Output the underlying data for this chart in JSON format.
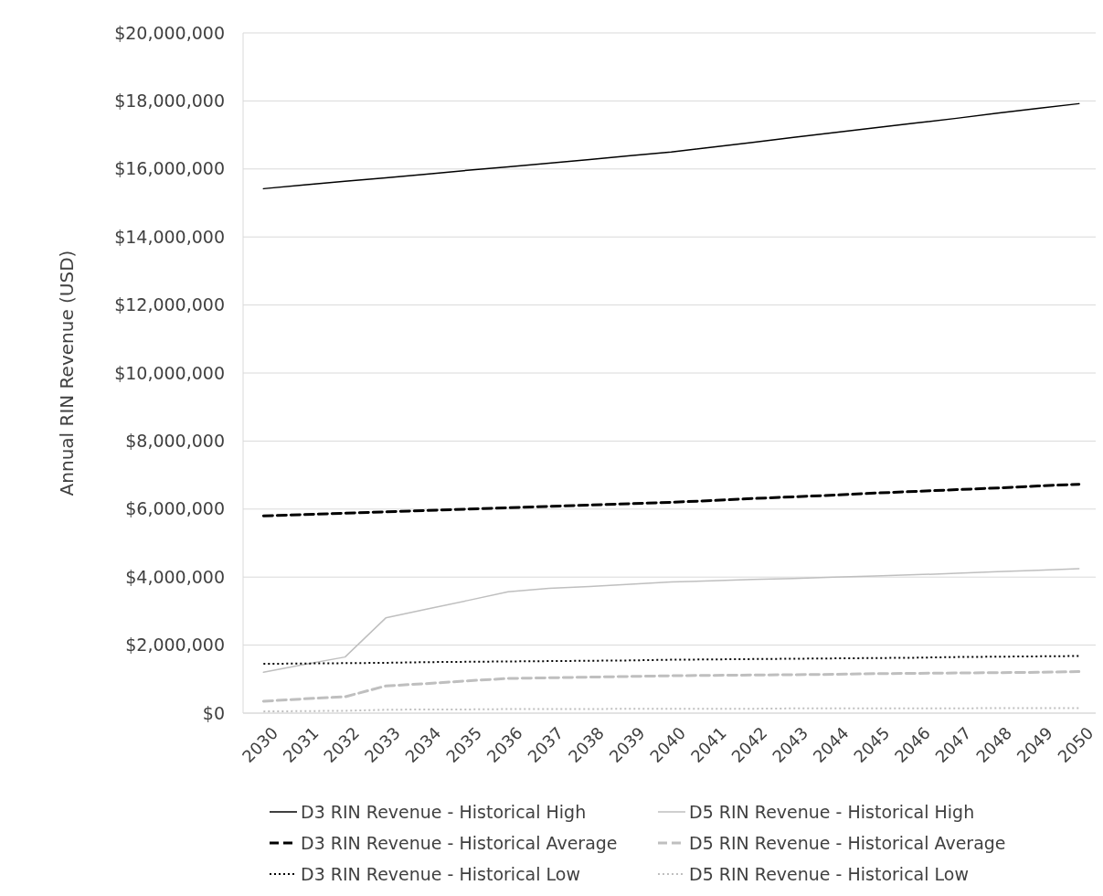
{
  "chart_data": {
    "type": "line",
    "ylabel": "Annual RIN Revenue (USD)",
    "categories": [
      "2030",
      "2031",
      "2032",
      "2033",
      "2034",
      "2035",
      "2036",
      "2037",
      "2038",
      "2039",
      "2040",
      "2041",
      "2042",
      "2043",
      "2044",
      "2045",
      "2046",
      "2047",
      "2048",
      "2049",
      "2050"
    ],
    "ylim": [
      0,
      20000000
    ],
    "yticks": [
      {
        "value": 0,
        "label": "$0"
      },
      {
        "value": 2000000,
        "label": "$2,000,000"
      },
      {
        "value": 4000000,
        "label": "$4,000,000"
      },
      {
        "value": 6000000,
        "label": "$6,000,000"
      },
      {
        "value": 8000000,
        "label": "$8,000,000"
      },
      {
        "value": 10000000,
        "label": "$10,000,000"
      },
      {
        "value": 12000000,
        "label": "$12,000,000"
      },
      {
        "value": 14000000,
        "label": "$14,000,000"
      },
      {
        "value": 16000000,
        "label": "$16,000,000"
      },
      {
        "value": 18000000,
        "label": "$18,000,000"
      },
      {
        "value": 20000000,
        "label": "$20,000,000"
      }
    ],
    "grid": "y",
    "legend": "bottom",
    "marker": "none",
    "series": [
      {
        "name": "D3 RIN Revenue - Historical High",
        "color": "#000000",
        "line_style": "solid",
        "values": [
          15420000,
          15530000,
          15640000,
          15740000,
          15850000,
          15960000,
          16060000,
          16170000,
          16280000,
          16390000,
          16500000,
          16640000,
          16780000,
          16930000,
          17070000,
          17210000,
          17350000,
          17490000,
          17640000,
          17780000,
          17920000
        ]
      },
      {
        "name": "D5 RIN Revenue - Historical High",
        "color": "#bfbfbf",
        "line_style": "solid",
        "values": [
          1200000,
          1430000,
          1650000,
          2800000,
          3060000,
          3310000,
          3570000,
          3670000,
          3720000,
          3790000,
          3860000,
          3890000,
          3930000,
          3960000,
          4000000,
          4030000,
          4070000,
          4110000,
          4160000,
          4200000,
          4250000
        ]
      },
      {
        "name": "D3 RIN Revenue - Historical Average",
        "color": "#000000",
        "line_style": "dashed",
        "values": [
          5800000,
          5840000,
          5880000,
          5920000,
          5960000,
          6000000,
          6040000,
          6080000,
          6120000,
          6160000,
          6200000,
          6250000,
          6310000,
          6360000,
          6410000,
          6470000,
          6520000,
          6570000,
          6620000,
          6680000,
          6730000
        ]
      },
      {
        "name": "D5 RIN Revenue - Historical Average",
        "color": "#bfbfbf",
        "line_style": "dashed",
        "values": [
          350000,
          420000,
          480000,
          800000,
          870000,
          950000,
          1020000,
          1040000,
          1060000,
          1080000,
          1100000,
          1110000,
          1120000,
          1130000,
          1140000,
          1160000,
          1170000,
          1180000,
          1190000,
          1200000,
          1220000
        ]
      },
      {
        "name": "D3 RIN Revenue - Historical Low",
        "color": "#000000",
        "line_style": "dotted",
        "values": [
          1450000,
          1460000,
          1470000,
          1480000,
          1500000,
          1510000,
          1520000,
          1530000,
          1540000,
          1550000,
          1570000,
          1580000,
          1590000,
          1600000,
          1610000,
          1620000,
          1630000,
          1650000,
          1660000,
          1670000,
          1680000
        ]
      },
      {
        "name": "D5 RIN Revenue - Historical Low",
        "color": "#bfbfbf",
        "line_style": "dotted",
        "values": [
          50000,
          60000,
          70000,
          100000,
          110000,
          110000,
          120000,
          120000,
          120000,
          130000,
          130000,
          130000,
          130000,
          140000,
          140000,
          140000,
          140000,
          140000,
          150000,
          150000,
          150000
        ]
      }
    ]
  }
}
